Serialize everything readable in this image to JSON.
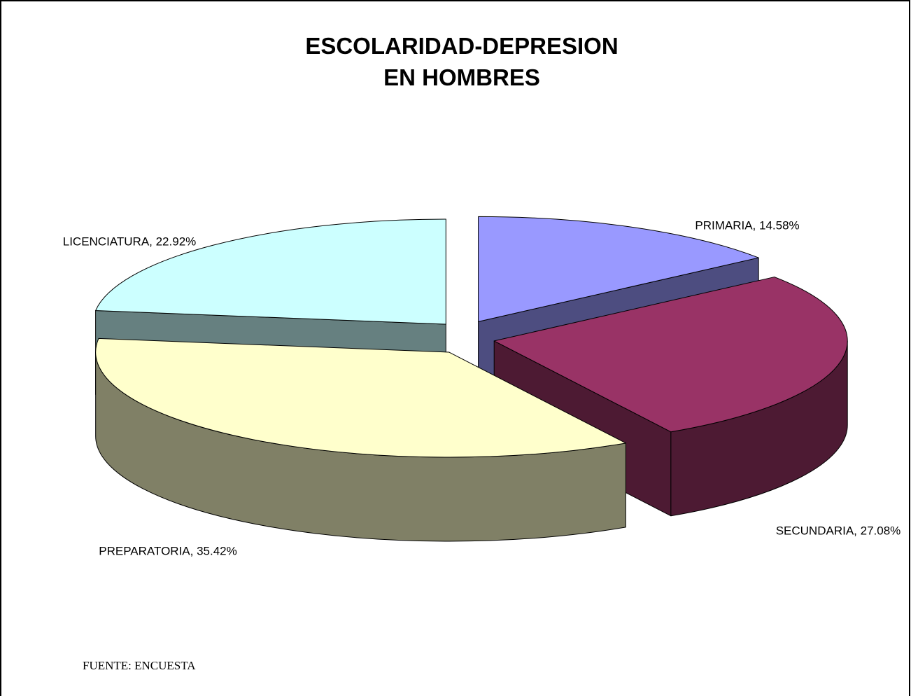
{
  "chart_data": {
    "type": "pie3d",
    "title": [
      "ESCOLARIDAD-DEPRESION",
      "EN HOMBRES"
    ],
    "values": [
      14.58,
      27.08,
      35.42,
      22.92
    ],
    "value_labels": [
      "PRIMARIA, 14.58%",
      "SECUNDARIA, 27.08%",
      "PREPARATORIA, 35.42%",
      "LICENCIATURA, 22.92%"
    ],
    "colors": [
      "#9999ff",
      "#993366",
      "#ffffcc",
      "#ccffff"
    ],
    "source": "FUENTE: ENCUESTA"
  }
}
